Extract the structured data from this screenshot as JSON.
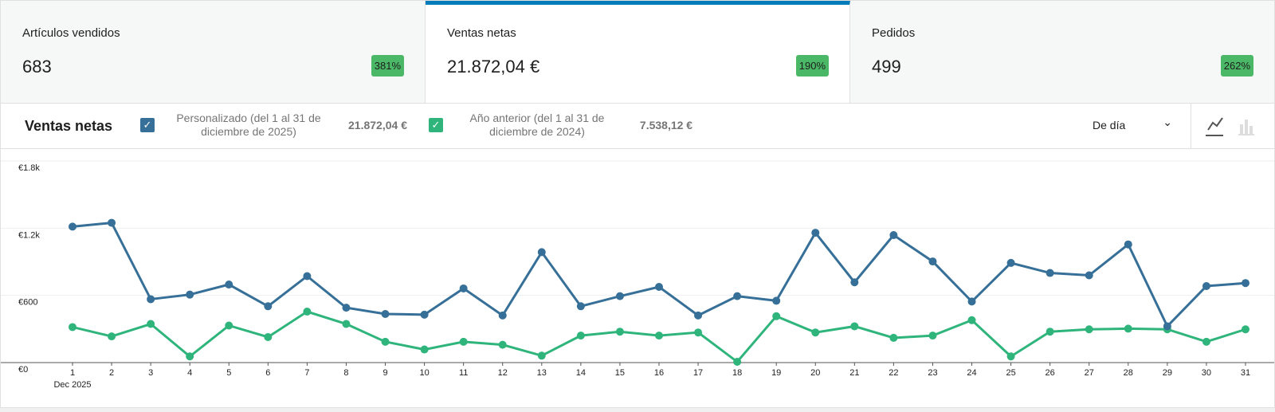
{
  "tiles": [
    {
      "label": "Artículos vendidos",
      "value": "683",
      "delta": "381%"
    },
    {
      "label": "Ventas netas",
      "value": "21.872,04 €",
      "delta": "190%"
    },
    {
      "label": "Pedidos",
      "value": "499",
      "delta": "262%"
    }
  ],
  "interval": "De día",
  "chart_data": {
    "type": "line",
    "title": "Ventas netas",
    "xlabel": "Dec 2025",
    "categories": [
      "1",
      "2",
      "3",
      "4",
      "5",
      "6",
      "7",
      "8",
      "9",
      "10",
      "11",
      "12",
      "13",
      "14",
      "15",
      "16",
      "17",
      "18",
      "19",
      "20",
      "21",
      "22",
      "23",
      "24",
      "25",
      "26",
      "27",
      "28",
      "29",
      "30",
      "31"
    ],
    "series": [
      {
        "name": "Personalizado (del 1 al 31 de diciembre de 2025)",
        "total": "21.872,04 €",
        "color": "#366f97",
        "values": [
          1214,
          1248,
          566,
          607,
          697,
          503,
          772,
          490,
          434,
          428,
          662,
          421,
          986,
          503,
          593,
          676,
          421,
          593,
          552,
          1159,
          717,
          1138,
          903,
          545,
          890,
          800,
          779,
          1055,
          324,
          683,
          710
        ]
      },
      {
        "name": "Año anterior (del 1 al 31 de diciembre de 2024)",
        "total": "7.538,12 €",
        "color": "#2fb57c",
        "values": [
          317,
          234,
          345,
          55,
          331,
          228,
          455,
          345,
          186,
          117,
          186,
          159,
          62,
          241,
          276,
          241,
          269,
          7,
          414,
          269,
          324,
          221,
          241,
          379,
          55,
          276,
          297,
          303,
          297,
          186,
          297
        ]
      }
    ],
    "ylim": [
      0,
      1800
    ],
    "yticks": [
      {
        "value": 0,
        "label": "€0"
      },
      {
        "value": 600,
        "label": "€600"
      },
      {
        "value": 1200,
        "label": "€1.2k"
      },
      {
        "value": 1800,
        "label": "€1.8k"
      }
    ],
    "grid": true
  }
}
